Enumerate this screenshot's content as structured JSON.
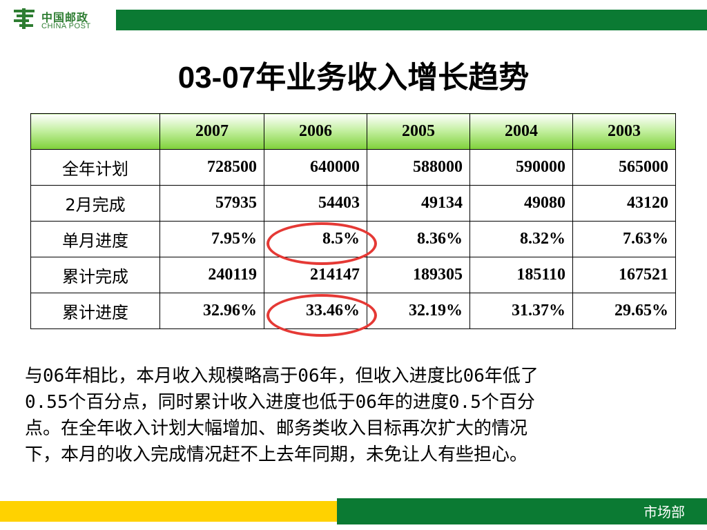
{
  "header": {
    "logo_cn": "中国邮政",
    "logo_en": "CHINA POST"
  },
  "title": {
    "num": "03-07",
    "text": "年业务收入增长趋势"
  },
  "table": {
    "corner": "",
    "headers": [
      "2007",
      "2006",
      "2005",
      "2004",
      "2003"
    ],
    "rows": [
      {
        "label": "全年计划",
        "values": [
          "728500",
          "640000",
          "588000",
          "590000",
          "565000"
        ]
      },
      {
        "label": "2月完成",
        "values": [
          "57935",
          "54403",
          "49134",
          "49080",
          "43120"
        ]
      },
      {
        "label": "单月进度",
        "values": [
          "7.95%",
          "8.5%",
          "8.36%",
          "8.32%",
          "7.63%"
        ]
      },
      {
        "label": "累计完成",
        "values": [
          "240119",
          "214147",
          "189305",
          "185110",
          "167521"
        ]
      },
      {
        "label": "累计进度",
        "values": [
          "32.96%",
          "33.46%",
          "32.19%",
          "31.37%",
          "29.65%"
        ]
      }
    ]
  },
  "note_lines": [
    "与06年相比，本月收入规模略高于06年，但收入进度比06年低了",
    "0.55个百分点，同时累计收入进度也低于06年的进度0.5个百分",
    "点。在全年收入计划大幅增加、邮务类收入目标再次扩大的情况",
    "下，本月的收入完成情况赶不上去年同期，未免让人有些担心。"
  ],
  "footer": {
    "dept": "市场部"
  },
  "colors": {
    "brand_green": "#0b7a33",
    "accent_yellow": "#ffd200",
    "highlight_red": "#e53935"
  }
}
